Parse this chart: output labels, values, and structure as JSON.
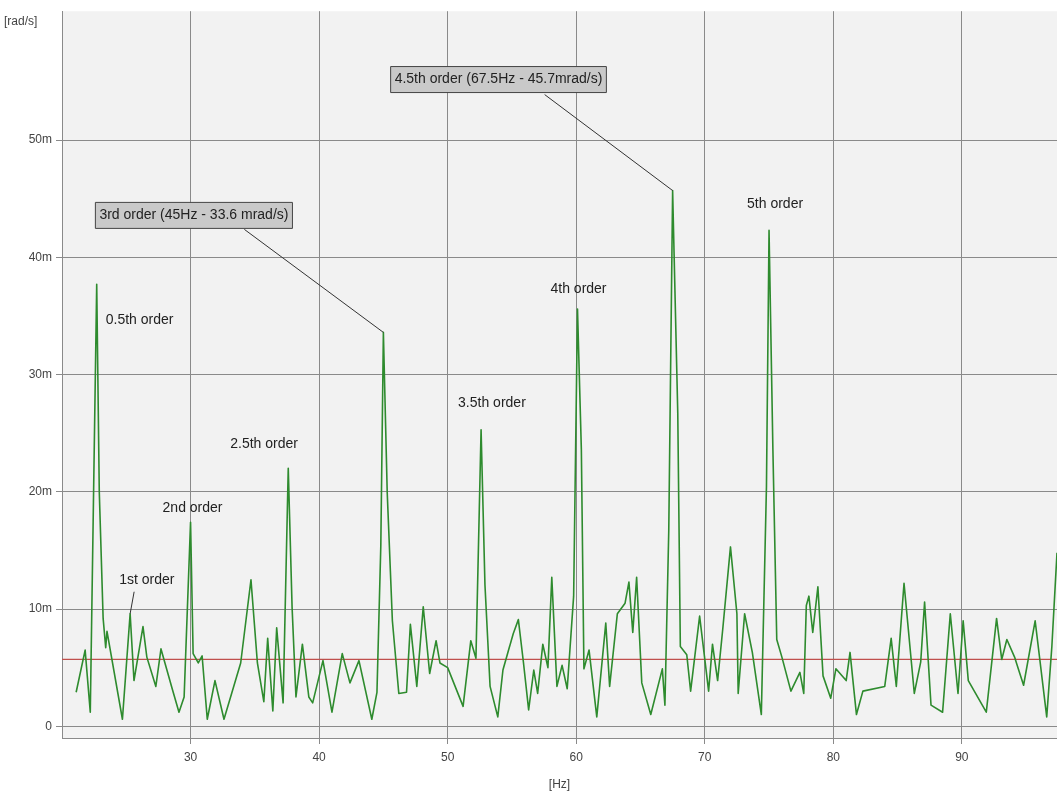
{
  "chart_data": {
    "type": "line",
    "xlabel": "[Hz]",
    "ylabel": "[rad/s]",
    "xlim": [
      20,
      97.4
    ],
    "ylim": [
      -1,
      61
    ],
    "xticks": [
      30,
      40,
      50,
      60,
      70,
      80,
      90
    ],
    "yticks": [
      0,
      {
        "value": 10,
        "label": "10m"
      },
      {
        "value": 20,
        "label": "20m"
      },
      {
        "value": 30,
        "label": "30m"
      },
      {
        "value": 40,
        "label": "40m"
      },
      {
        "value": 50,
        "label": "50m"
      }
    ],
    "grid": true,
    "legend": false,
    "marker": "none",
    "line_style": "solid",
    "series": [
      {
        "color": "#2e8b2e",
        "x": [
          21.1,
          21.8,
          22.2,
          22.7,
          22.9,
          23.2,
          23.4,
          23.5,
          24.7,
          25.3,
          25.6,
          26.3,
          26.6,
          27.3,
          27.7,
          28.6,
          29.1,
          29.5,
          30.0,
          30.2,
          30.6,
          30.9,
          31.3,
          31.9,
          32.6,
          33.9,
          34.7,
          35.2,
          35.7,
          36.0,
          36.4,
          36.7,
          37.2,
          37.6,
          37.9,
          38.2,
          38.7,
          39.2,
          39.5,
          40.3,
          41.0,
          41.8,
          42.4,
          43.1,
          44.1,
          44.5,
          44.8,
          45.0,
          45.3,
          45.7,
          46.2,
          46.8,
          47.1,
          47.6,
          48.1,
          48.6,
          49.1,
          49.4,
          50.0,
          51.2,
          51.8,
          52.2,
          52.6,
          52.9,
          53.3,
          53.9,
          54.3,
          55.1,
          55.5,
          55.9,
          56.3,
          56.7,
          57.0,
          57.4,
          57.8,
          58.1,
          58.5,
          58.9,
          59.3,
          59.8,
          60.1,
          60.4,
          60.6,
          61.0,
          61.6,
          62.3,
          62.6,
          63.2,
          63.8,
          64.1,
          64.4,
          64.7,
          65.1,
          65.8,
          66.7,
          66.9,
          67.2,
          67.5,
          67.9,
          68.1,
          68.6,
          68.9,
          69.6,
          70.3,
          70.6,
          71.0,
          71.4,
          72.0,
          72.5,
          72.6,
          73.1,
          73.7,
          74.4,
          74.8,
          75.0,
          75.3,
          75.6,
          76.0,
          76.7,
          77.4,
          77.7,
          77.9,
          78.1,
          78.4,
          78.8,
          79.2,
          79.8,
          80.2,
          81.0,
          81.3,
          81.8,
          82.3,
          84.0,
          84.5,
          84.9,
          85.5,
          86.3,
          86.8,
          87.1,
          87.6,
          88.5,
          89.1,
          89.7,
          90.1,
          90.5,
          91.9,
          92.7,
          93.1,
          93.5,
          94.1,
          94.8,
          95.7,
          96.6,
          97.0,
          97.4
        ],
        "values": [
          2.9,
          6.5,
          1.2,
          37.7,
          20.0,
          9.2,
          6.7,
          8.1,
          0.6,
          9.6,
          3.9,
          8.5,
          5.9,
          3.4,
          6.6,
          3.1,
          1.2,
          2.5,
          17.4,
          6.2,
          5.4,
          6.0,
          0.6,
          3.9,
          0.6,
          5.4,
          12.5,
          5.4,
          2.1,
          7.5,
          1.3,
          8.4,
          2.0,
          22.0,
          10.1,
          2.5,
          7.0,
          2.5,
          2.0,
          5.6,
          1.2,
          6.2,
          3.7,
          5.6,
          0.6,
          2.9,
          15.4,
          33.6,
          19.9,
          9.0,
          2.8,
          2.9,
          8.7,
          3.4,
          10.2,
          4.5,
          7.3,
          5.4,
          5.0,
          1.7,
          7.3,
          5.8,
          25.3,
          12.1,
          3.4,
          0.8,
          4.8,
          7.9,
          9.1,
          5.4,
          1.4,
          4.8,
          2.8,
          7.0,
          5.0,
          12.7,
          3.4,
          5.2,
          3.2,
          11.1,
          35.6,
          23.6,
          4.9,
          6.5,
          0.8,
          8.8,
          3.4,
          9.6,
          10.5,
          12.3,
          8.0,
          12.7,
          3.7,
          1.0,
          4.9,
          1.8,
          16.7,
          45.7,
          26.7,
          6.8,
          6.1,
          3.0,
          9.4,
          3.0,
          7.0,
          3.9,
          8.3,
          15.3,
          9.6,
          2.8,
          9.6,
          6.3,
          1.0,
          20.5,
          42.3,
          23.6,
          7.4,
          5.9,
          3.0,
          4.6,
          2.8,
          10.3,
          11.1,
          8.0,
          11.9,
          4.3,
          2.4,
          4.9,
          3.9,
          6.3,
          1.0,
          3.0,
          3.4,
          7.5,
          3.4,
          12.2,
          2.8,
          5.5,
          10.6,
          1.8,
          1.2,
          9.6,
          2.8,
          9.0,
          3.9,
          1.2,
          9.2,
          5.7,
          7.4,
          5.9,
          3.5,
          9.0,
          0.8,
          6.8,
          14.8
        ]
      }
    ],
    "ref_lines": [
      {
        "axis": "y",
        "value": 5.7,
        "color": "#c0504d"
      }
    ],
    "annotations": [
      {
        "text": "0.5th order",
        "x": 22.7,
        "y": 37.7
      },
      {
        "text": "1st order",
        "x": 25.3,
        "y": 9.6
      },
      {
        "text": "2nd order",
        "x": 30.0,
        "y": 17.4
      },
      {
        "text": "2.5th order",
        "x": 37.6,
        "y": 22.0
      },
      {
        "text": "3rd order (45Hz - 33.6 mrad/s)",
        "x": 45.0,
        "y": 33.6
      },
      {
        "text": "3.5th order",
        "x": 52.6,
        "y": 25.3
      },
      {
        "text": "4th order",
        "x": 60.1,
        "y": 35.6
      },
      {
        "text": "4.5th order (67.5Hz - 45.7mrad/s)",
        "x": 67.5,
        "y": 45.7
      },
      {
        "text": "5th order",
        "x": 75.0,
        "y": 42.3
      }
    ]
  }
}
